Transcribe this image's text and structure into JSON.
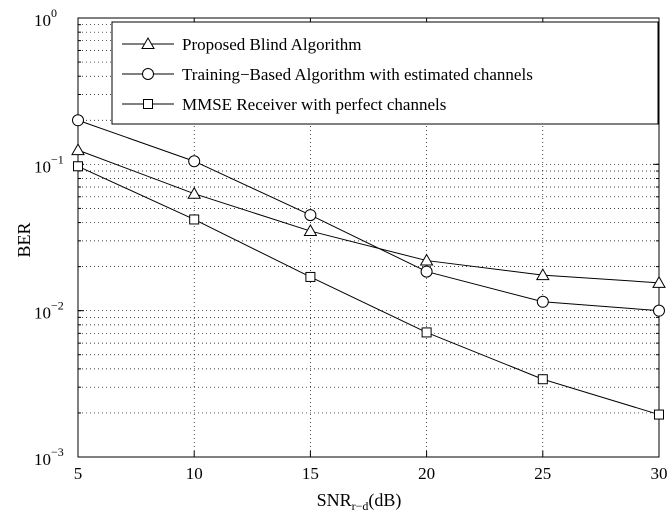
{
  "chart_data": {
    "type": "line",
    "xlabel_main": "SNR",
    "xlabel_sub": "r−d",
    "xlabel_tail": "(dB)",
    "ylabel": "BER",
    "y_scale": "log",
    "xlim": [
      5,
      30
    ],
    "ylim": [
      0.001,
      1
    ],
    "grid": true,
    "legend_position": "top-right",
    "x_ticks": [
      5,
      10,
      15,
      20,
      25,
      30
    ],
    "x_tick_labels": [
      "5",
      "10",
      "15",
      "20",
      "25",
      "30"
    ],
    "y_ticks": [
      {
        "value": 0.001,
        "base": "10",
        "exp": "−3"
      },
      {
        "value": 0.01,
        "base": "10",
        "exp": "−2"
      },
      {
        "value": 0.1,
        "base": "10",
        "exp": "−1"
      },
      {
        "value": 1,
        "base": "10",
        "exp": "0"
      }
    ],
    "x": [
      5,
      10,
      15,
      20,
      25,
      30
    ],
    "series": [
      {
        "name": "Proposed Blind Algorithm",
        "marker": "triangle",
        "values": [
          0.125,
          0.063,
          0.035,
          0.022,
          0.0175,
          0.0155
        ]
      },
      {
        "name": "Training−Based Algorithm with estimated channels",
        "marker": "circle",
        "values": [
          0.2,
          0.105,
          0.045,
          0.0185,
          0.0115,
          0.01
        ]
      },
      {
        "name": "MMSE Receiver with perfect channels",
        "marker": "square",
        "values": [
          0.097,
          0.042,
          0.017,
          0.0071,
          0.0034,
          0.00195
        ]
      }
    ]
  }
}
